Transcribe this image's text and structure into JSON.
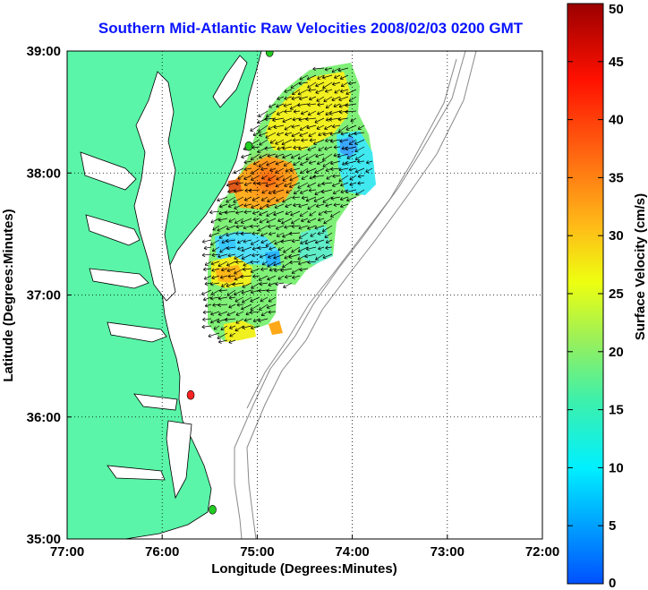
{
  "title": "Southern Mid-Atlantic Raw Velocities 2008/02/03 0200 GMT",
  "map": {
    "xlabel": "Longitude (Degrees:Minutes)",
    "ylabel": "Latitude (Degrees:Minutes)",
    "lon_range": [
      -77.0,
      -72.0
    ],
    "lat_range": [
      35.0,
      39.0
    ],
    "x_ticks": [
      {
        "value": -77.0,
        "label": "77:00"
      },
      {
        "value": -76.0,
        "label": "76:00"
      },
      {
        "value": -75.0,
        "label": "75:00"
      },
      {
        "value": -74.0,
        "label": "74:00"
      },
      {
        "value": -73.0,
        "label": "73:00"
      },
      {
        "value": -72.0,
        "label": "72:00"
      }
    ],
    "y_ticks": [
      {
        "value": 35.0,
        "label": "35:00"
      },
      {
        "value": 36.0,
        "label": "36:00"
      },
      {
        "value": 37.0,
        "label": "37:00"
      },
      {
        "value": 38.0,
        "label": "38:00"
      },
      {
        "value": 39.0,
        "label": "39:00"
      }
    ],
    "grid": "dotted",
    "land_color": "#5af5a8",
    "sites": [
      {
        "lon": -74.87,
        "lat": 38.99,
        "color": "#22cc22"
      },
      {
        "lon": -75.09,
        "lat": 38.22,
        "color": "#22cc22"
      },
      {
        "lon": -75.7,
        "lat": 36.18,
        "color": "#ff2222"
      },
      {
        "lon": -75.47,
        "lat": 35.24,
        "color": "#22cc22"
      }
    ]
  },
  "colorbar": {
    "label": "Surface Velocity (cm/s)",
    "min": 0,
    "max": 50,
    "ticks": [
      {
        "value": 0,
        "label": "0"
      },
      {
        "value": 5,
        "label": "5"
      },
      {
        "value": 10,
        "label": "10"
      },
      {
        "value": 15,
        "label": "15"
      },
      {
        "value": 20,
        "label": "20"
      },
      {
        "value": 25,
        "label": "25"
      },
      {
        "value": 30,
        "label": "30"
      },
      {
        "value": 35,
        "label": "35"
      },
      {
        "value": 40,
        "label": "40"
      },
      {
        "value": 45,
        "label": "45"
      },
      {
        "value": 50,
        "label": "50"
      }
    ]
  }
}
